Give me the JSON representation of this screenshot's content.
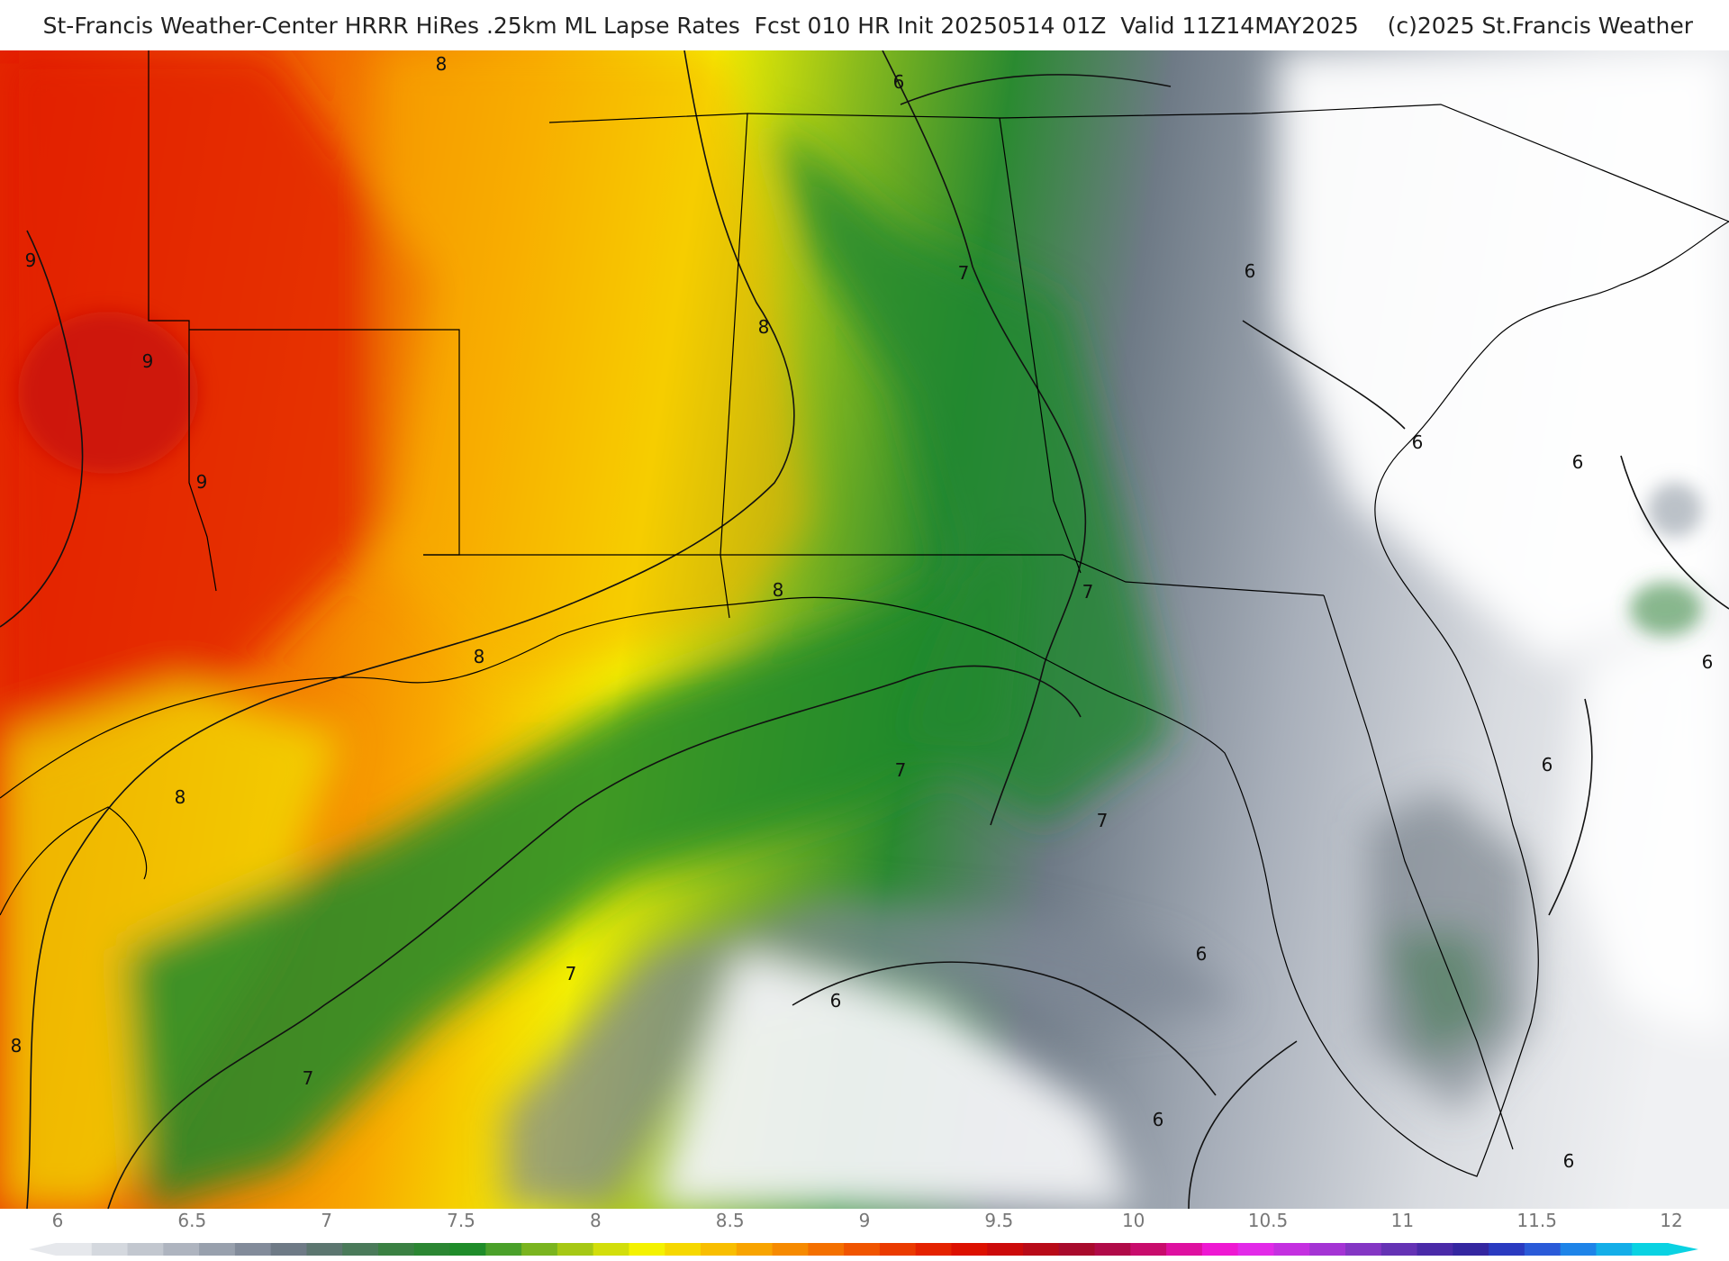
{
  "title": "St-Francis Weather-Center HRRR HiRes .25km ML Lapse Rates  Fcst 010 HR Init 20250514 01Z  Valid 11Z14MAY2025    (c)2025 St.Francis Weather",
  "contour_labels": {
    "c1": "8",
    "c2": "6",
    "c3": "9",
    "c4": "9",
    "c5": "9",
    "c6": "7",
    "c7": "8",
    "c8": "6",
    "c9": "6",
    "c10": "6",
    "c11": "8",
    "c12": "8",
    "c13": "7",
    "c14": "6",
    "c15": "8",
    "c16": "7",
    "c17": "7",
    "c18": "7",
    "c19": "6",
    "c20": "6",
    "c21": "6",
    "c22": "7",
    "c23": "8",
    "c24": "6",
    "c25": "6"
  },
  "legend": {
    "ticks": [
      "6",
      "6.5",
      "7",
      "7.5",
      "8",
      "8.5",
      "9",
      "9.5",
      "10",
      "10.5",
      "11",
      "11.5",
      "12"
    ],
    "colors": [
      "#e6e8ec",
      "#d4d8de",
      "#c2c7cf",
      "#aeb4bf",
      "#98a0ad",
      "#828b9a",
      "#6e7a86",
      "#5c7670",
      "#4a7a5a",
      "#3a8043",
      "#2b8633",
      "#1f8c2a",
      "#4aa02a",
      "#7ab41f",
      "#a6c814",
      "#d2de0a",
      "#f4f200",
      "#f6d800",
      "#f8be00",
      "#f8a400",
      "#f68a00",
      "#f47000",
      "#f05400",
      "#ea3a00",
      "#e42200",
      "#dc1000",
      "#cc0a0a",
      "#b80a18",
      "#a80a2c",
      "#b00a48",
      "#c80c6c",
      "#de10a0",
      "#ee18d2",
      "#e22ae8",
      "#c430e0",
      "#a434d4",
      "#8436c4",
      "#6432b4",
      "#4a2aa8",
      "#3426a0",
      "#2a3ac0",
      "#2a5ad8",
      "#1e84e8",
      "#14aee8",
      "#0ad2e2"
    ]
  }
}
